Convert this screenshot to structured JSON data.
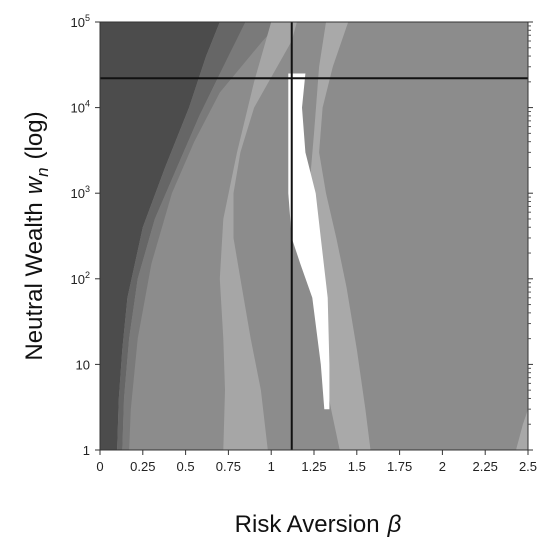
{
  "chart_data": {
    "type": "heatmap",
    "title": "",
    "xlabel": "Risk Aversion",
    "xlabel_symbol": "β",
    "ylabel": "Neutral Wealth",
    "ylabel_symbol": "w",
    "ylabel_subscript": "n",
    "ylabel_suffix": "(log)",
    "xlim": [
      0,
      2.5
    ],
    "ylim": [
      1,
      100000
    ],
    "y_scale": "log",
    "x_ticks": [
      0,
      0.25,
      0.5,
      0.75,
      1,
      1.25,
      1.5,
      1.75,
      2,
      2.25,
      2.5
    ],
    "x_tick_labels": [
      "0",
      "0.25",
      "0.5",
      "0.75",
      "1",
      "1.25",
      "1.5",
      "1.75",
      "2",
      "2.25",
      "2.5"
    ],
    "y_ticks": [
      1,
      10,
      100,
      1000,
      10000,
      100000
    ],
    "y_tick_labels": [
      {
        "base": "1",
        "exp": ""
      },
      {
        "base": "10",
        "exp": ""
      },
      {
        "base": "10",
        "exp": "2"
      },
      {
        "base": "10",
        "exp": "3"
      },
      {
        "base": "10",
        "exp": "4"
      },
      {
        "base": "10",
        "exp": "5"
      }
    ],
    "reference_lines": {
      "vertical_x": 1.12,
      "horizontal_y": 22000
    },
    "colormap": "grayscale",
    "background_color": "#8c8c8c",
    "regions": [
      {
        "name": "darkest",
        "color": "#4c4c4c",
        "polygon": [
          [
            0,
            100000
          ],
          [
            0.7,
            100000
          ],
          [
            0.62,
            40000
          ],
          [
            0.52,
            10000
          ],
          [
            0.38,
            2000
          ],
          [
            0.25,
            400
          ],
          [
            0.16,
            60
          ],
          [
            0.13,
            15
          ],
          [
            0.11,
            4
          ],
          [
            0.1,
            1
          ],
          [
            0,
            1
          ]
        ]
      },
      {
        "name": "dark",
        "color": "#666666",
        "polygon": [
          [
            0.7,
            100000
          ],
          [
            0.85,
            100000
          ],
          [
            0.72,
            30000
          ],
          [
            0.58,
            8000
          ],
          [
            0.45,
            2000
          ],
          [
            0.32,
            500
          ],
          [
            0.22,
            100
          ],
          [
            0.17,
            20
          ],
          [
            0.14,
            4
          ],
          [
            0.13,
            1
          ],
          [
            0.1,
            1
          ],
          [
            0.11,
            4
          ],
          [
            0.13,
            15
          ],
          [
            0.16,
            60
          ],
          [
            0.25,
            400
          ],
          [
            0.38,
            2000
          ],
          [
            0.52,
            10000
          ],
          [
            0.62,
            40000
          ]
        ]
      },
      {
        "name": "mid-dark",
        "color": "#7a7a7a",
        "polygon": [
          [
            0.85,
            100000
          ],
          [
            1.05,
            100000
          ],
          [
            0.95,
            60000
          ],
          [
            0.7,
            15000
          ],
          [
            0.55,
            4000
          ],
          [
            0.42,
            1000
          ],
          [
            0.3,
            150
          ],
          [
            0.22,
            20
          ],
          [
            0.18,
            3
          ],
          [
            0.17,
            1
          ],
          [
            0.13,
            1
          ],
          [
            0.14,
            4
          ],
          [
            0.17,
            20
          ],
          [
            0.22,
            100
          ],
          [
            0.32,
            500
          ],
          [
            0.45,
            2000
          ],
          [
            0.58,
            8000
          ],
          [
            0.72,
            30000
          ]
        ]
      },
      {
        "name": "light-left",
        "color": "#a6a6a6",
        "polygon": [
          [
            1.0,
            100000
          ],
          [
            1.15,
            100000
          ],
          [
            1.12,
            60000
          ],
          [
            0.9,
            10000
          ],
          [
            0.82,
            3000
          ],
          [
            0.78,
            1000
          ],
          [
            0.78,
            300
          ],
          [
            0.82,
            100
          ],
          [
            0.88,
            20
          ],
          [
            0.94,
            5
          ],
          [
            0.98,
            1
          ],
          [
            0.72,
            1
          ],
          [
            0.73,
            5
          ],
          [
            0.72,
            20
          ],
          [
            0.7,
            100
          ],
          [
            0.72,
            500
          ],
          [
            0.8,
            3000
          ],
          [
            0.9,
            20000
          ]
        ]
      },
      {
        "name": "light-right",
        "color": "#a9a9a9",
        "polygon": [
          [
            1.32,
            100000
          ],
          [
            1.45,
            100000
          ],
          [
            1.36,
            30000
          ],
          [
            1.3,
            10000
          ],
          [
            1.28,
            3000
          ],
          [
            1.32,
            1000
          ],
          [
            1.38,
            300
          ],
          [
            1.44,
            80
          ],
          [
            1.5,
            15
          ],
          [
            1.55,
            3
          ],
          [
            1.58,
            1
          ],
          [
            1.4,
            1
          ],
          [
            1.35,
            3
          ],
          [
            1.3,
            10
          ],
          [
            1.26,
            40
          ],
          [
            1.22,
            200
          ],
          [
            1.22,
            1000
          ],
          [
            1.25,
            5000
          ],
          [
            1.28,
            30000
          ]
        ]
      },
      {
        "name": "white",
        "color": "#ffffff",
        "polygon": [
          [
            1.1,
            25000
          ],
          [
            1.2,
            25000
          ],
          [
            1.18,
            10000
          ],
          [
            1.2,
            3000
          ],
          [
            1.26,
            1000
          ],
          [
            1.29,
            300
          ],
          [
            1.33,
            60
          ],
          [
            1.34,
            10
          ],
          [
            1.34,
            3
          ],
          [
            1.31,
            3
          ],
          [
            1.29,
            10
          ],
          [
            1.24,
            60
          ],
          [
            1.17,
            150
          ],
          [
            1.12,
            300
          ],
          [
            1.1,
            1000
          ],
          [
            1.1,
            5000
          ]
        ]
      },
      {
        "name": "light-bottom-right",
        "color": "#a8a8a8",
        "polygon": [
          [
            2.43,
            1
          ],
          [
            2.5,
            1
          ],
          [
            2.5,
            3
          ],
          [
            2.47,
            2
          ]
        ]
      }
    ]
  }
}
